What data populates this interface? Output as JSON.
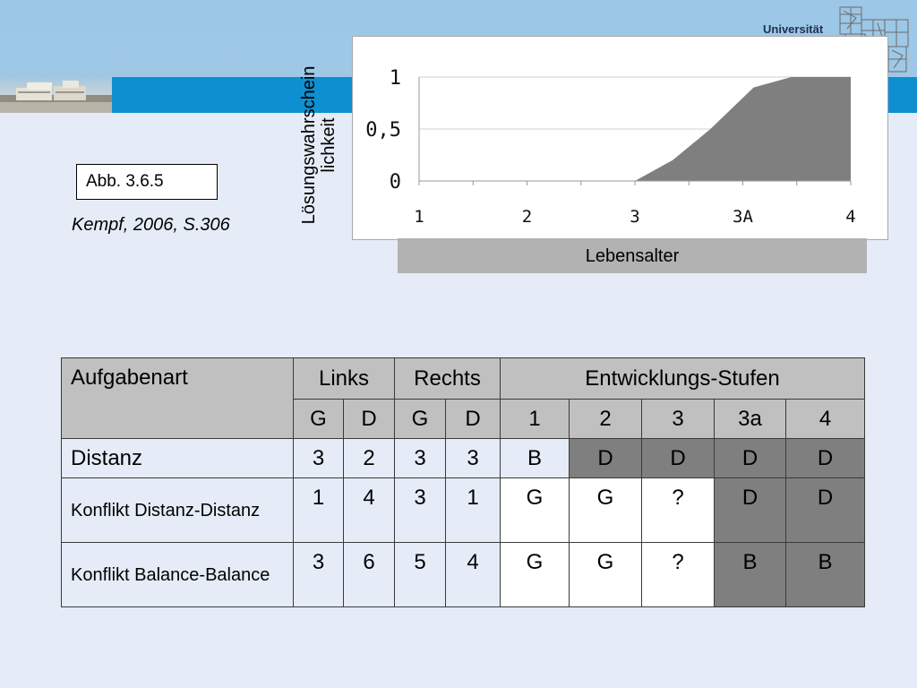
{
  "header": {
    "university_label": "Universität"
  },
  "figure": {
    "label": "Abb. 3.6.5",
    "citation": "Kempf, 2006, S.306"
  },
  "chart_data": {
    "type": "area",
    "categories": [
      "1",
      "2",
      "3",
      "3A",
      "4"
    ],
    "x": [
      3.0,
      3.35,
      3.7,
      4.1,
      4.45,
      5.0
    ],
    "y": [
      0.0,
      0.2,
      0.5,
      0.9,
      1.0,
      1.0
    ],
    "yticks": [
      "0",
      "0,5",
      "1"
    ],
    "ylim": [
      0,
      1
    ],
    "xlim": [
      1,
      5
    ],
    "ylabel": "Lösungswahrschein lichkeit",
    "xlabel": "Lebensalter",
    "grid": true,
    "fill_color": "#7f7f7f"
  },
  "table": {
    "head1": [
      "Aufgabenart",
      "Links",
      "Rechts",
      "Entwicklungs-Stufen"
    ],
    "head2": [
      "G",
      "D",
      "G",
      "D",
      "1",
      "2",
      "3",
      "3a",
      "4"
    ],
    "rows": [
      {
        "name": "Distanz",
        "cells": [
          "3",
          "2",
          "3",
          "3",
          "B",
          "D",
          "D",
          "D",
          "D"
        ]
      },
      {
        "name": "Konflikt Distanz-Distanz",
        "cells": [
          "1",
          "4",
          "3",
          "1",
          "G",
          "G",
          "?",
          "D",
          "D"
        ]
      },
      {
        "name": "Konflikt Balance-Balance",
        "cells": [
          "3",
          "6",
          "5",
          "4",
          "G",
          "G",
          "?",
          "B",
          "B"
        ]
      }
    ]
  },
  "colors": {
    "background": "#e5ecf7",
    "header_sky": "#9ec8e6",
    "header_band": "#0d8fd0",
    "cell_dark": "#7f7f7f",
    "cell_header": "#c0c0c0"
  }
}
